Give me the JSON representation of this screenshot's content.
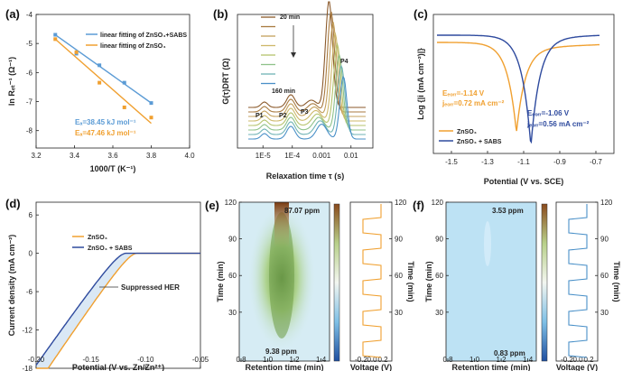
{
  "chart_data": [
    {
      "id": "a",
      "type": "scatter",
      "panel_label": "(a)",
      "xlabel": "1000/T (K⁻¹)",
      "ylabel": "ln Rₑₜ⁻¹ (Ω⁻¹)",
      "xlim": [
        3.2,
        4.0
      ],
      "ylim": [
        -8.6,
        -4.0
      ],
      "xticks": [
        "3.2",
        "3.4",
        "3.6",
        "3.8",
        "4.0"
      ],
      "yticks": [
        "-4",
        "-5",
        "-6",
        "-7",
        "-8"
      ],
      "series": [
        {
          "name": "linear fitting of ZnSO₄+SABS",
          "color": "#5b9bd5",
          "x": [
            3.3,
            3.41,
            3.53,
            3.66,
            3.8
          ],
          "y": [
            -4.7,
            -5.35,
            -5.75,
            -6.35,
            -7.05
          ],
          "fit": [
            [
              3.3,
              -4.7
            ],
            [
              3.8,
              -7.05
            ]
          ],
          "annotation": "Eₐ=38.45 kJ mol⁻¹"
        },
        {
          "name": "linear fitting of ZnSO₄",
          "color": "#f0a030",
          "x": [
            3.3,
            3.41,
            3.53,
            3.66,
            3.8
          ],
          "y": [
            -4.85,
            -5.3,
            -6.35,
            -7.2,
            -7.55
          ],
          "fit": [
            [
              3.3,
              -4.85
            ],
            [
              3.8,
              -7.75
            ]
          ],
          "annotation": "Eₐ=47.46 kJ mol⁻¹"
        }
      ]
    },
    {
      "id": "b",
      "type": "line",
      "panel_label": "(b)",
      "xlabel": "Relaxation time τ (s)",
      "ylabel": "G(τ)DRT (Ω)",
      "xticks": [
        "1E-5",
        "1E-4",
        "0.001",
        "0.01"
      ],
      "legend_first": "20 min",
      "legend_last": "160 min",
      "peak_labels": [
        "P1",
        "P2",
        "P3",
        "P4"
      ],
      "n_curves": 8,
      "colors": [
        "#8b5a2b",
        "#a87a3f",
        "#c4a05c",
        "#cdb86a",
        "#b5c36c",
        "#8fc28a",
        "#6fb3b5",
        "#4a90c8"
      ]
    },
    {
      "id": "c",
      "type": "line",
      "panel_label": "(c)",
      "xlabel": "Potential (V vs. SCE)",
      "ylabel": "Log {|i (mA cm⁻²)|}",
      "xlim": [
        -1.6,
        -0.6
      ],
      "xticks": [
        "-1.5",
        "-1.3",
        "-1.1",
        "-0.9",
        "-0.7"
      ],
      "series": [
        {
          "name": "ZnSO₄",
          "color": "#f0a030",
          "ecorr": -1.14,
          "label_e": "Eₑₒᵣᵣ=-1.14 V",
          "label_j": "jₑₒᵣᵣ=0.72 mA cm⁻²"
        },
        {
          "name": "ZnSO₄ + SABS",
          "color": "#2e4a9e",
          "ecorr": -1.06,
          "label_e": "Eₑₒᵣᵣ=-1.06 V",
          "label_j": "jₑₒᵣᵣ=0.56 mA cm⁻²"
        }
      ]
    },
    {
      "id": "d",
      "type": "line",
      "panel_label": "(d)",
      "xlabel": "Potential (V vs. Zn/Zn²⁺)",
      "ylabel": "Current density (mA cm⁻²)",
      "xlim": [
        -0.2,
        -0.05
      ],
      "ylim": [
        -18,
        8
      ],
      "xticks": [
        "-0.20",
        "-0.15",
        "-0.10",
        "-0.05"
      ],
      "yticks": [
        "6",
        "0",
        "-6",
        "-12",
        "-18"
      ],
      "annotation": "Suppressed HER",
      "series": [
        {
          "name": "ZnSO₄",
          "color": "#f0a030",
          "onset": -0.108
        },
        {
          "name": "ZnSO₄ + SABS",
          "color": "#2e4a9e",
          "onset": -0.118
        }
      ]
    },
    {
      "id": "e",
      "type": "heatmap",
      "panel_label": "(e)",
      "xlabel": "Retention time (min)",
      "ylabel": "Time (min)",
      "xticks": [
        "0.8",
        "1.0",
        "1.2",
        "1.4"
      ],
      "yticks": [
        "120",
        "90",
        "60",
        "30"
      ],
      "max_label": "87.07 ppm",
      "min_label": "9.38 ppm",
      "side_xlabel": "Voltage (V)",
      "side_xticks": [
        "-0.2",
        "0.0",
        "0.2"
      ],
      "side_yticks": [
        "120",
        "90",
        "60",
        "30"
      ],
      "side_color": "#f0a030"
    },
    {
      "id": "f",
      "type": "heatmap",
      "panel_label": "(f)",
      "xlabel": "Retention time (min)",
      "ylabel": "Time (min)",
      "xticks": [
        "0.8",
        "1.0",
        "1.2",
        "1.4"
      ],
      "yticks": [
        "120",
        "90",
        "60",
        "30"
      ],
      "max_label": "3.53 ppm",
      "min_label": "0.83 ppm",
      "side_xlabel": "Voltage (V)",
      "side_xticks": [
        "-0.2",
        "0.0",
        "0.2"
      ],
      "side_yticks": [
        "120",
        "90",
        "60",
        "30"
      ],
      "side_color": "#4a90c8"
    }
  ]
}
